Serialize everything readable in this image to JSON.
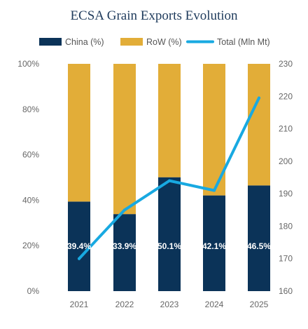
{
  "chart_data": {
    "type": "bar",
    "title": "ECSA Grain Exports Evolution",
    "categories": [
      "2021",
      "2022",
      "2023",
      "2024",
      "2025"
    ],
    "series": [
      {
        "name": "China (%)",
        "kind": "stacked-bar",
        "axis": "left",
        "color": "#0b3358",
        "values": [
          39.4,
          33.9,
          50.1,
          42.1,
          46.5
        ]
      },
      {
        "name": "RoW (%)",
        "kind": "stacked-bar",
        "axis": "left",
        "color": "#e2ad38",
        "values": [
          60.6,
          66.1,
          49.9,
          57.9,
          53.5
        ]
      },
      {
        "name": "Total (Mln Mt)",
        "kind": "line",
        "axis": "right",
        "color": "#18a9e1",
        "values": [
          170,
          185,
          194,
          191,
          219.5
        ]
      }
    ],
    "data_labels": [
      "39.4%",
      "33.9%",
      "50.1%",
      "42.1%",
      "46.5%"
    ],
    "y_left": {
      "ticks": [
        "0%",
        "20%",
        "40%",
        "60%",
        "80%",
        "100%"
      ],
      "ylim": [
        0,
        100
      ]
    },
    "y_right": {
      "ticks": [
        "160",
        "170",
        "180",
        "190",
        "200",
        "210",
        "220",
        "230"
      ],
      "ylim": [
        160,
        230
      ]
    },
    "legend_position": "top",
    "grid": false
  }
}
